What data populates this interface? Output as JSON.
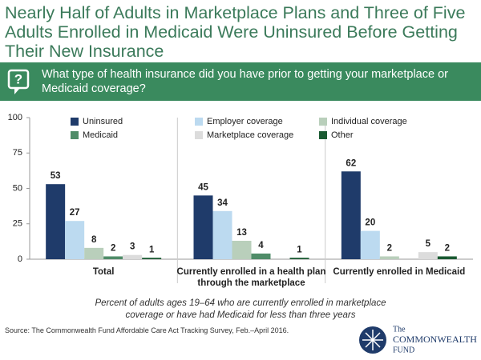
{
  "chart_data": {
    "type": "bar",
    "title": "Nearly Half of Adults in Marketplace Plans and Three of Five Adults Enrolled in Medicaid Were Uninsured Before Getting Their New Insurance",
    "subtitle": "What type of health insurance did you have prior to getting your marketplace or Medicaid coverage?",
    "categories": [
      "Total",
      "Currently enrolled in a health plan through the marketplace",
      "Currently enrolled in Medicaid"
    ],
    "series": [
      {
        "name": "Uninsured",
        "color": "#1f3b6a",
        "values": [
          53,
          45,
          62
        ]
      },
      {
        "name": "Employer coverage",
        "color": "#bcdaf0",
        "values": [
          27,
          34,
          20
        ]
      },
      {
        "name": "Individual coverage",
        "color": "#b9cfbb",
        "values": [
          8,
          13,
          2
        ]
      },
      {
        "name": "Medicaid",
        "color": "#4f8c68",
        "values": [
          2,
          4,
          null
        ]
      },
      {
        "name": "Marketplace coverage",
        "color": "#dcdcdc",
        "values": [
          3,
          null,
          5
        ]
      },
      {
        "name": "Other",
        "color": "#1a5a32",
        "values": [
          1,
          1,
          2
        ]
      }
    ],
    "ylim": [
      0,
      100
    ],
    "yticks": [
      0,
      25,
      50,
      75,
      100
    ],
    "note": "Percent of adults ages 19–64 who are currently enrolled in marketplace coverage or have had Medicaid for less than three years",
    "source": "Source: The Commonwealth Fund Affordable Care Act Tracking Survey, Feb.–April 2016."
  },
  "logo": {
    "line1": "The",
    "line2": "COMMONWEALTH",
    "line3": "FUND"
  }
}
